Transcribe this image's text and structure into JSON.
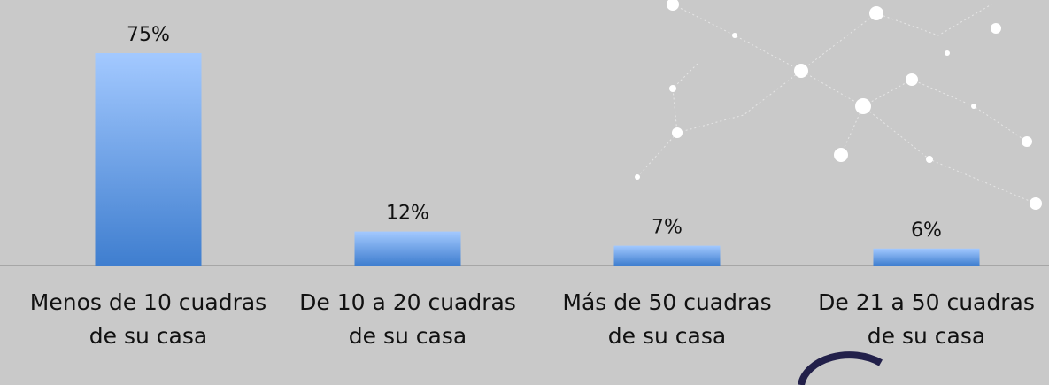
{
  "chart_data": {
    "type": "bar",
    "categories": [
      "Menos de 10 cuadras de su casa",
      "De 10 a 20 cuadras de su casa",
      "Más de 50 cuadras de su casa",
      "De 21 a 50 cuadras de su casa"
    ],
    "values": [
      75,
      12,
      7,
      6
    ],
    "value_labels": [
      "75%",
      "12%",
      "7%",
      "6%"
    ],
    "color": "#5b97e6",
    "ylim": [
      0,
      80
    ]
  }
}
